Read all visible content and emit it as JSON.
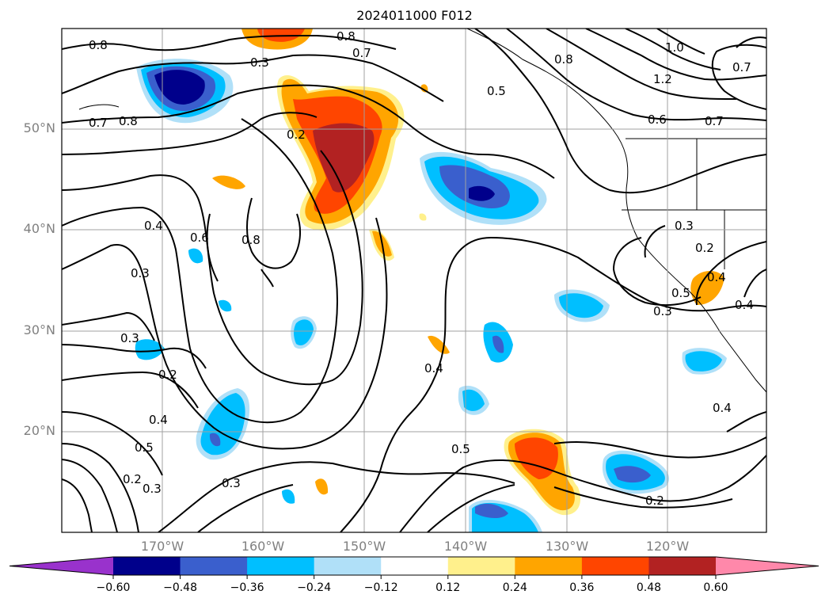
{
  "title": "2024011000 F012",
  "map": {
    "lon_range": [
      -180,
      -110
    ],
    "lat_range": [
      10,
      60
    ],
    "lat_labels": [
      "50°N",
      "40°N",
      "30°N",
      "20°N"
    ],
    "lon_labels": [
      "170°W",
      "160°W",
      "150°W",
      "140°W",
      "130°W",
      "120°W"
    ]
  },
  "contour_labels": [
    "0.8",
    "0.7",
    "0.8",
    "0.3",
    "0.8",
    "0.7",
    "0.5",
    "0.8",
    "1.0",
    "1.2",
    "0.7",
    "0.6",
    "0.7",
    "0.2",
    "0.4",
    "0.6",
    "0.8",
    "0.3",
    "0.3",
    "0.2",
    "0.3",
    "0.5",
    "0.4",
    "0.3",
    "0.4",
    "0.2",
    "0.4",
    "0.5",
    "0.5",
    "0.2",
    "0.3",
    "0.3",
    "0.2",
    "0.4",
    "0.4"
  ],
  "colorbar": {
    "ticks": [
      "−0.60",
      "−0.48",
      "−0.36",
      "−0.24",
      "−0.12",
      "0.12",
      "0.24",
      "0.36",
      "0.48",
      "0.60"
    ],
    "colors": [
      "#9932cc",
      "#00008b",
      "#3a5fcd",
      "#00bfff",
      "#b0e0f8",
      "#ffffff",
      "#fff08c",
      "#ffa500",
      "#ff4500",
      "#b22222",
      "#ff88aa"
    ]
  }
}
